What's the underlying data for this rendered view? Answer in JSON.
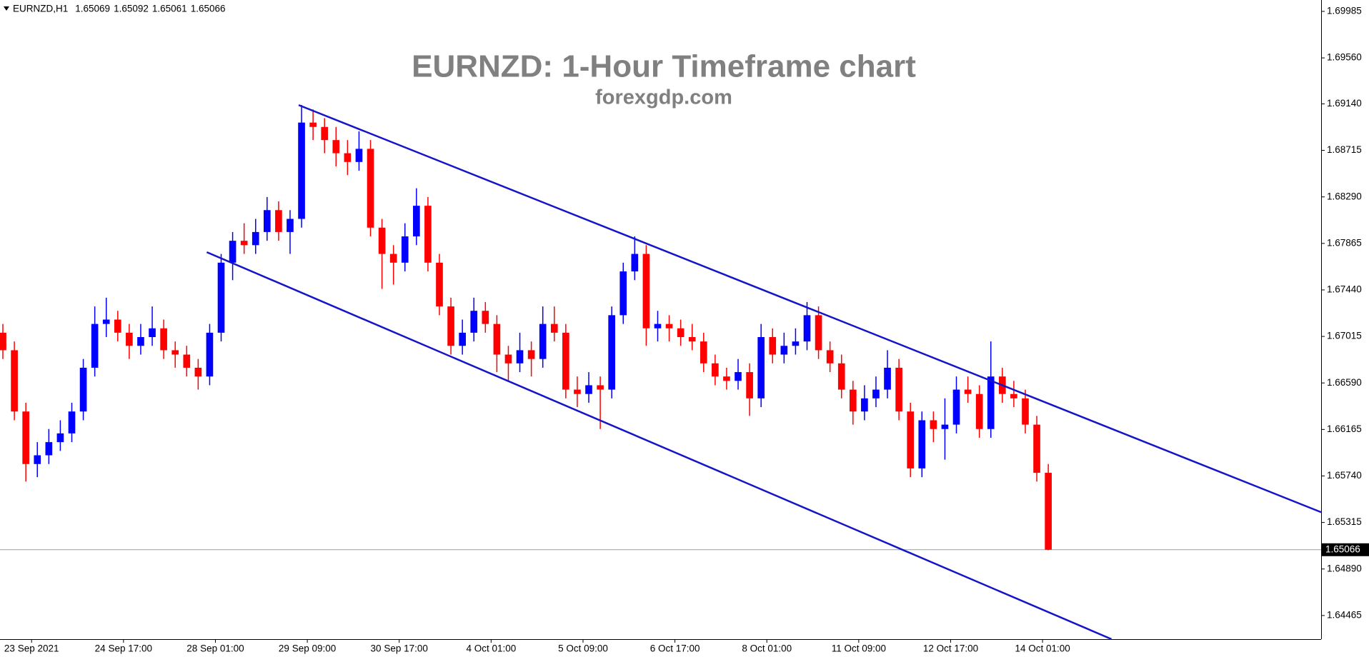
{
  "chart_data": {
    "type": "candlestick",
    "symbol": "EURNZD,H1",
    "info_values": [
      1.65069,
      1.65092,
      1.65061,
      1.65066
    ],
    "title": "EURNZD:  1-Hour Timeframe chart",
    "subtitle": "forexgdp.com",
    "up_color": "#0000ff",
    "down_color": "#ff0000",
    "line_color": "#1414c8",
    "xlim": [
      0,
      460
    ],
    "ylim": [
      1.64249,
      1.70089
    ],
    "current_price": 1.65066,
    "yticks": [
      1.69985,
      {
        "value": 1.6956,
        "label": "1.69560"
      },
      {
        "value": 1.6914,
        "label": "1.69140"
      },
      1.68715,
      {
        "value": 1.6829,
        "label": "1.68290"
      },
      1.67865,
      {
        "value": 1.6744,
        "label": "1.67440"
      },
      1.67015,
      {
        "value": 1.6659,
        "label": "1.66590"
      },
      1.66165,
      {
        "value": 1.6574,
        "label": "1.65740"
      },
      1.65315,
      {
        "value": 1.6489,
        "label": "1.64890"
      },
      1.64465
    ],
    "xticks": [
      {
        "value": 11,
        "label": "23 Sep 2021"
      },
      {
        "value": 43,
        "label": "24 Sep 17:00"
      },
      {
        "value": 75,
        "label": "28 Sep 01:00"
      },
      {
        "value": 107,
        "label": "29 Sep 09:00"
      },
      {
        "value": 139,
        "label": "30 Sep 17:00"
      },
      {
        "value": 171,
        "label": "4 Oct 01:00"
      },
      {
        "value": 203,
        "label": "5 Oct 09:00"
      },
      {
        "value": 235,
        "label": "6 Oct 17:00"
      },
      {
        "value": 267,
        "label": "8 Oct 01:00"
      },
      {
        "value": 299,
        "label": "11 Oct 09:00"
      },
      {
        "value": 331,
        "label": "12 Oct 17:00"
      },
      {
        "value": 363,
        "label": "14 Oct 01:00"
      }
    ],
    "trendlines": [
      {
        "x": [
          104,
          460
        ],
        "values": [
          1.69129,
          1.65409
        ]
      },
      {
        "x": [
          72,
          387
        ],
        "values": [
          1.67785,
          1.64249
        ]
      }
    ],
    "x": [
      1,
      5,
      9,
      13,
      17,
      21,
      25,
      29,
      33,
      37,
      41,
      45,
      49,
      53,
      57,
      61,
      65,
      69,
      73,
      77,
      81,
      85,
      89,
      93,
      97,
      101,
      105,
      109,
      113,
      117,
      121,
      125,
      129,
      133,
      137,
      141,
      145,
      149,
      153,
      157,
      161,
      165,
      169,
      173,
      177,
      181,
      185,
      189,
      193,
      197,
      201,
      205,
      209,
      213,
      217,
      221,
      225,
      229,
      233,
      237,
      241,
      245,
      249,
      253,
      257,
      261,
      265,
      269,
      273,
      277,
      281,
      285,
      289,
      293,
      297,
      301,
      305,
      309,
      313,
      317,
      321,
      325,
      329,
      333,
      337,
      341,
      345,
      349,
      353,
      357,
      361,
      365
    ],
    "ohlc": [
      [
        1.67049,
        1.67129,
        1.66809,
        1.66889
      ],
      [
        1.66889,
        1.66969,
        1.66249,
        1.66329
      ],
      [
        1.66329,
        1.66409,
        1.65689,
        1.65849
      ],
      [
        1.65849,
        1.66049,
        1.65729,
        1.65929
      ],
      [
        1.65929,
        1.66169,
        1.65849,
        1.66049
      ],
      [
        1.66049,
        1.66249,
        1.65969,
        1.66129
      ],
      [
        1.66129,
        1.66409,
        1.66049,
        1.66329
      ],
      [
        1.66329,
        1.66809,
        1.66249,
        1.66729
      ],
      [
        1.66729,
        1.67289,
        1.66649,
        1.67129
      ],
      [
        1.67129,
        1.67369,
        1.67009,
        1.67169
      ],
      [
        1.67169,
        1.67249,
        1.66969,
        1.67049
      ],
      [
        1.67049,
        1.67129,
        1.66809,
        1.66929
      ],
      [
        1.66929,
        1.67129,
        1.66849,
        1.67009
      ],
      [
        1.67009,
        1.67289,
        1.66929,
        1.67089
      ],
      [
        1.67089,
        1.67169,
        1.66809,
        1.66889
      ],
      [
        1.66889,
        1.66969,
        1.66729,
        1.66849
      ],
      [
        1.66849,
        1.66929,
        1.66649,
        1.66729
      ],
      [
        1.66729,
        1.66809,
        1.66529,
        1.66649
      ],
      [
        1.66649,
        1.67129,
        1.66569,
        1.67049
      ],
      [
        1.67049,
        1.67769,
        1.66969,
        1.67689
      ],
      [
        1.67689,
        1.67969,
        1.67529,
        1.67889
      ],
      [
        1.67889,
        1.68049,
        1.67769,
        1.67849
      ],
      [
        1.67849,
        1.68089,
        1.67769,
        1.67969
      ],
      [
        1.67969,
        1.68289,
        1.67889,
        1.68169
      ],
      [
        1.68169,
        1.68249,
        1.67889,
        1.67969
      ],
      [
        1.67969,
        1.68169,
        1.67769,
        1.68089
      ],
      [
        1.68089,
        1.69129,
        1.68009,
        1.68969
      ],
      [
        1.68969,
        1.69089,
        1.68809,
        1.68929
      ],
      [
        1.68929,
        1.69009,
        1.68689,
        1.68809
      ],
      [
        1.68809,
        1.68929,
        1.68569,
        1.68689
      ],
      [
        1.68689,
        1.68809,
        1.68489,
        1.68609
      ],
      [
        1.68609,
        1.68889,
        1.68529,
        1.68729
      ],
      [
        1.68729,
        1.68809,
        1.67929,
        1.68009
      ],
      [
        1.68009,
        1.68089,
        1.67449,
        1.67769
      ],
      [
        1.67769,
        1.67849,
        1.67489,
        1.67689
      ],
      [
        1.67689,
        1.68049,
        1.67609,
        1.67929
      ],
      [
        1.67929,
        1.68369,
        1.67849,
        1.68209
      ],
      [
        1.68209,
        1.68289,
        1.67609,
        1.67689
      ],
      [
        1.67689,
        1.67769,
        1.67209,
        1.67289
      ],
      [
        1.67289,
        1.67369,
        1.66849,
        1.66929
      ],
      [
        1.66929,
        1.67169,
        1.66849,
        1.67049
      ],
      [
        1.67049,
        1.67369,
        1.66969,
        1.67249
      ],
      [
        1.67249,
        1.67329,
        1.67049,
        1.67129
      ],
      [
        1.67129,
        1.67209,
        1.66689,
        1.66849
      ],
      [
        1.66849,
        1.66929,
        1.66609,
        1.66769
      ],
      [
        1.66769,
        1.67049,
        1.66689,
        1.66889
      ],
      [
        1.66889,
        1.66969,
        1.66649,
        1.66809
      ],
      [
        1.66809,
        1.67289,
        1.66729,
        1.67129
      ],
      [
        1.67129,
        1.67289,
        1.66969,
        1.67049
      ],
      [
        1.67049,
        1.67129,
        1.66449,
        1.66529
      ],
      [
        1.66529,
        1.66649,
        1.66369,
        1.66489
      ],
      [
        1.66489,
        1.66689,
        1.66409,
        1.66569
      ],
      [
        1.66569,
        1.66649,
        1.66169,
        1.66529
      ],
      [
        1.66529,
        1.67289,
        1.66449,
        1.67209
      ],
      [
        1.67209,
        1.67689,
        1.67129,
        1.67609
      ],
      [
        1.67609,
        1.67929,
        1.67529,
        1.67769
      ],
      [
        1.67769,
        1.67849,
        1.66929,
        1.67089
      ],
      [
        1.67089,
        1.67249,
        1.66969,
        1.67129
      ],
      [
        1.67129,
        1.67209,
        1.66969,
        1.67089
      ],
      [
        1.67089,
        1.67169,
        1.66929,
        1.67009
      ],
      [
        1.67009,
        1.67129,
        1.66889,
        1.66969
      ],
      [
        1.66969,
        1.67049,
        1.66689,
        1.66769
      ],
      [
        1.66769,
        1.66849,
        1.66569,
        1.66649
      ],
      [
        1.66649,
        1.66729,
        1.66529,
        1.66609
      ],
      [
        1.66609,
        1.66809,
        1.66529,
        1.66689
      ],
      [
        1.66689,
        1.66769,
        1.66289,
        1.66449
      ],
      [
        1.66449,
        1.67129,
        1.66369,
        1.67009
      ],
      [
        1.67009,
        1.67089,
        1.66769,
        1.66849
      ],
      [
        1.66849,
        1.67049,
        1.66769,
        1.66929
      ],
      [
        1.66929,
        1.67089,
        1.66849,
        1.66969
      ],
      [
        1.66969,
        1.67329,
        1.66889,
        1.67209
      ],
      [
        1.67209,
        1.67289,
        1.66809,
        1.66889
      ],
      [
        1.66889,
        1.66969,
        1.66689,
        1.66769
      ],
      [
        1.66769,
        1.66849,
        1.66449,
        1.66529
      ],
      [
        1.66529,
        1.66609,
        1.66209,
        1.66329
      ],
      [
        1.66329,
        1.66569,
        1.66249,
        1.66449
      ],
      [
        1.66449,
        1.66649,
        1.66369,
        1.66529
      ],
      [
        1.66529,
        1.66889,
        1.66449,
        1.66729
      ],
      [
        1.66729,
        1.66809,
        1.66249,
        1.66329
      ],
      [
        1.66329,
        1.66409,
        1.65729,
        1.65809
      ],
      [
        1.65809,
        1.66329,
        1.65729,
        1.66249
      ],
      [
        1.66249,
        1.66329,
        1.66049,
        1.66169
      ],
      [
        1.66169,
        1.66449,
        1.65889,
        1.66209
      ],
      [
        1.66209,
        1.66649,
        1.66129,
        1.66529
      ],
      [
        1.66529,
        1.66649,
        1.66409,
        1.66489
      ],
      [
        1.66489,
        1.66569,
        1.66089,
        1.66169
      ],
      [
        1.66169,
        1.66969,
        1.66089,
        1.66649
      ],
      [
        1.66649,
        1.66729,
        1.66409,
        1.66489
      ],
      [
        1.66489,
        1.66609,
        1.66369,
        1.66449
      ],
      [
        1.66449,
        1.66529,
        1.66129,
        1.66209
      ],
      [
        1.66209,
        1.66289,
        1.65689,
        1.65769
      ],
      [
        1.65769,
        1.65849,
        1.65061,
        1.65066
      ]
    ]
  }
}
